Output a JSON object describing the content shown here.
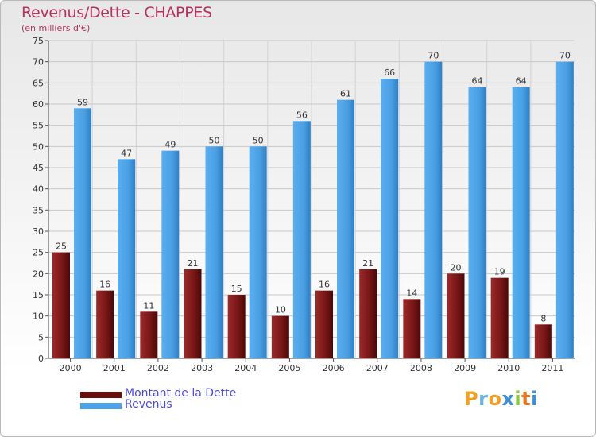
{
  "title": "Revenus/Dette - CHAPPES",
  "subtitle": "(en milliers d'€)",
  "colors": {
    "debt": "#7a1717",
    "revenue": "#4da3e6",
    "title": "#b5325f",
    "legend_text": "#4b4bd8"
  },
  "logo": {
    "letters": [
      "P",
      "r",
      "o",
      "x",
      "i",
      "t",
      "i"
    ],
    "colors": [
      "#f0a024",
      "#6cb7e0",
      "#f0a024",
      "#3f8fd4",
      "#8cc63e",
      "#e8761f",
      "#3f8fd4"
    ]
  },
  "chart_data": {
    "type": "bar",
    "categories": [
      "2000",
      "2001",
      "2002",
      "2003",
      "2004",
      "2005",
      "2006",
      "2007",
      "2008",
      "2009",
      "2010",
      "2011"
    ],
    "series": [
      {
        "name": "Montant de la Dette",
        "values": [
          25,
          16,
          11,
          21,
          15,
          10,
          16,
          21,
          14,
          20,
          19,
          8
        ]
      },
      {
        "name": "Revenus",
        "values": [
          59,
          47,
          49,
          50,
          50,
          56,
          61,
          66,
          70,
          64,
          64,
          70
        ]
      }
    ],
    "ylim": [
      0,
      75
    ],
    "yticks": [
      0,
      5,
      10,
      15,
      20,
      25,
      30,
      35,
      40,
      45,
      50,
      55,
      60,
      65,
      70,
      75
    ],
    "grid": true,
    "legend": "bottom-left"
  }
}
